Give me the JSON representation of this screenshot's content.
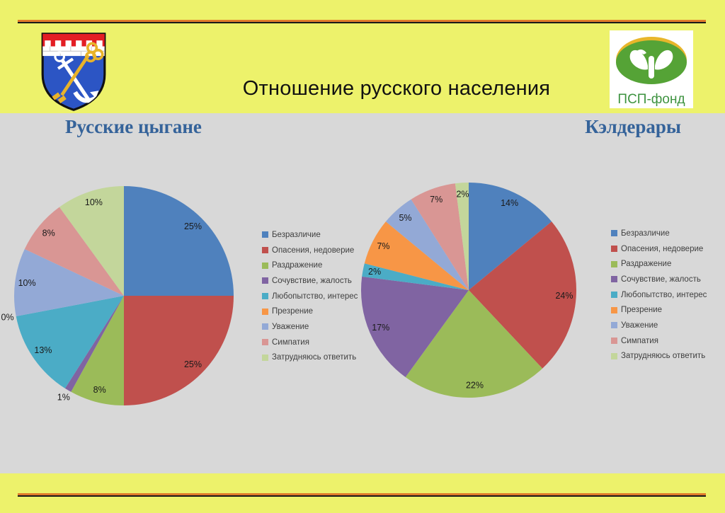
{
  "slide": {
    "title": "Отношение русского населения"
  },
  "logos": {
    "coat_of_arms": "leningrad-oblast-coat-of-arms",
    "psp_fund_label": "ПСП-фонд"
  },
  "legend": {
    "items": [
      "Безразличие",
      "Опасения, недоверие",
      "Раздражение",
      "Сочувствие, жалость",
      "Любопытство, интерес",
      "Презрение",
      "Уважение",
      "Симпатия",
      "Затрудняюсь ответить"
    ]
  },
  "colors": {
    "series": [
      "#4f81bd",
      "#c0504d",
      "#9bbb59",
      "#8064a2",
      "#4bacc6",
      "#f79646",
      "#93a9d6",
      "#d99694",
      "#c3d69b"
    ],
    "background": "#edf26b",
    "panel": "#d8d8d8",
    "heading_text": "#35639a",
    "divider_orange": "#e07b2a",
    "divider_black": "#1a1a1a",
    "logo_green": "#55a336",
    "logo_yellow": "#e8b62b",
    "shield_blue": "#2c55c4",
    "shield_red": "#e31e24"
  },
  "chart_data": [
    {
      "type": "pie",
      "title": "Русские цыгане",
      "categories": [
        "Безразличие",
        "Опасения, недоверие",
        "Раздражение",
        "Сочувствие, жалость",
        "Любопытство, интерес",
        "Презрение",
        "Уважение",
        "Симпатия",
        "Затрудняюсь ответить"
      ],
      "values": [
        25,
        25,
        8,
        1,
        13,
        0,
        10,
        8,
        10
      ],
      "unit": "%",
      "data_labels": [
        "25%",
        "25%",
        "8%",
        "1%",
        "13%",
        "0%",
        "10%",
        "8%",
        "10%"
      ],
      "legend_position": "right",
      "start_angle_deg": 0,
      "direction": "clockwise"
    },
    {
      "type": "pie",
      "title": "Кэлдерары",
      "categories": [
        "Безразличие",
        "Опасения, недоверие",
        "Раздражение",
        "Сочувствие, жалость",
        "Любопытство, интерес",
        "Презрение",
        "Уважение",
        "Симпатия",
        "Затрудняюсь ответить"
      ],
      "values": [
        14,
        24,
        22,
        17,
        2,
        7,
        5,
        7,
        2
      ],
      "unit": "%",
      "data_labels": [
        "14%",
        "24%",
        "22%",
        "17%",
        "2%",
        "7%",
        "5%",
        "7%",
        "2%"
      ],
      "legend_position": "right",
      "start_angle_deg": 0,
      "direction": "clockwise"
    }
  ]
}
